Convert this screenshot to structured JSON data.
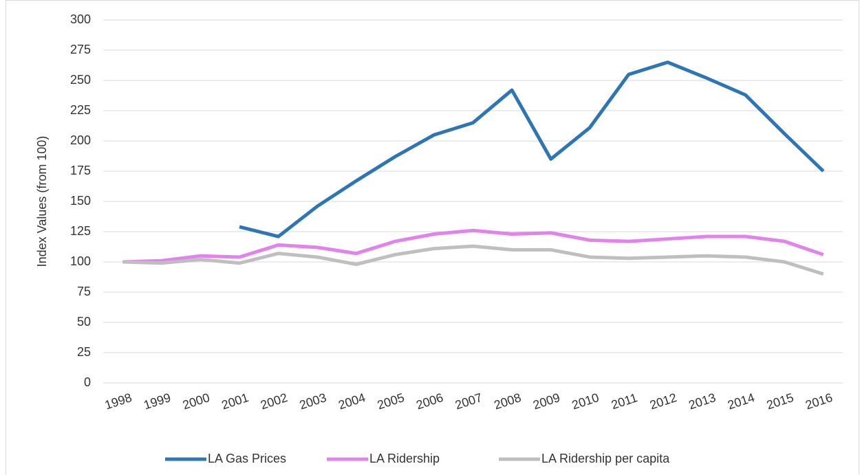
{
  "chart_data": {
    "type": "line",
    "y_label": "Index Values (from 100)",
    "categories": [
      "1998",
      "1999",
      "2000",
      "2001",
      "2002",
      "2003",
      "2004",
      "2005",
      "2006",
      "2007",
      "2008",
      "2009",
      "2010",
      "2011",
      "2012",
      "2013",
      "2014",
      "2015",
      "2016"
    ],
    "series": [
      {
        "name": "LA Gas Prices",
        "color": "#2e75b6",
        "values": [
          null,
          null,
          null,
          129,
          121,
          146,
          167,
          187,
          205,
          215,
          242,
          185,
          211,
          255,
          265,
          252,
          238,
          206,
          175
        ]
      },
      {
        "name": "LA Ridership",
        "color": "#e083ea",
        "values": [
          100,
          101,
          105,
          104,
          114,
          112,
          107,
          117,
          123,
          126,
          123,
          124,
          118,
          117,
          119,
          121,
          121,
          117,
          106
        ]
      },
      {
        "name": "LA Ridership per capita",
        "color": "#bfbfbf",
        "values": [
          100,
          99,
          102,
          99,
          107,
          104,
          98,
          106,
          111,
          113,
          110,
          110,
          104,
          103,
          104,
          105,
          104,
          100,
          90
        ]
      }
    ],
    "ylim": [
      0,
      300
    ],
    "yticks": [
      0,
      25,
      50,
      75,
      100,
      125,
      150,
      175,
      200,
      225,
      250,
      275,
      300
    ],
    "grid": true,
    "legend": "bottom"
  }
}
